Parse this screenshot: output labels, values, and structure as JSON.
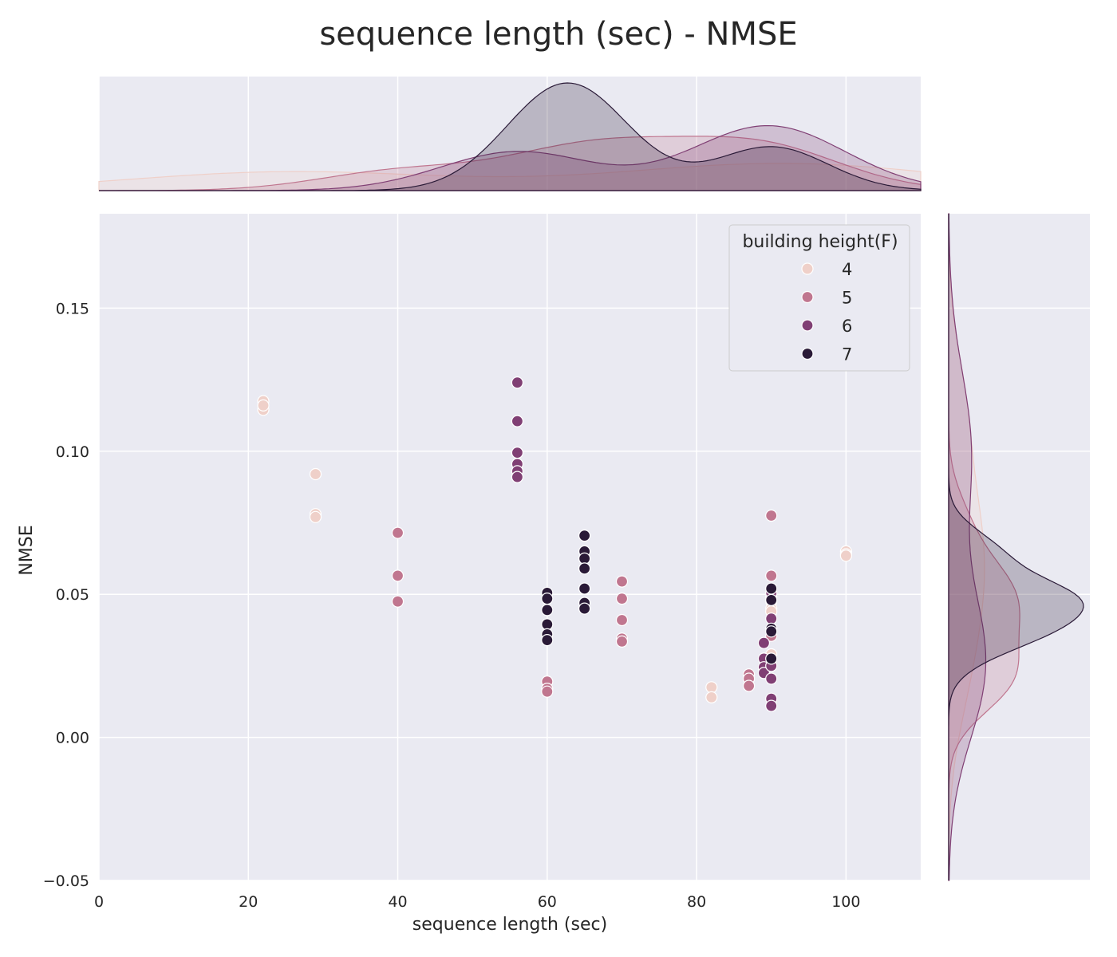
{
  "chart_data": {
    "type": "scatter",
    "title": "sequence length (sec) - NMSE",
    "xlabel": "sequence length (sec)",
    "ylabel": "NMSE",
    "xlim": [
      0,
      110
    ],
    "ylim": [
      -0.05,
      0.183
    ],
    "x_ticks": [
      0,
      20,
      40,
      60,
      80,
      100
    ],
    "y_ticks": [
      -0.05,
      0.0,
      0.05,
      0.1,
      0.15
    ],
    "x_tick_labels": [
      "0",
      "20",
      "40",
      "60",
      "80",
      "100"
    ],
    "y_tick_labels": [
      "−0.05",
      "0.00",
      "0.05",
      "0.10",
      "0.15"
    ],
    "grid": true,
    "marginal": "kde",
    "legend": {
      "title": "building height(F)",
      "placement": "top-right",
      "entries": [
        "4",
        "5",
        "6",
        "7"
      ]
    },
    "colors": {
      "4": "#efd0c9",
      "5": "#c0768f",
      "6": "#803f74",
      "7": "#2a1a37",
      "background": "#eaeaf2",
      "grid": "#ffffff"
    },
    "series": [
      {
        "name": "4",
        "points": [
          [
            22,
            0.1175
          ],
          [
            22,
            0.1145
          ],
          [
            22,
            0.116
          ],
          [
            29,
            0.092
          ],
          [
            29,
            0.078
          ],
          [
            29,
            0.077
          ],
          [
            82,
            0.0175
          ],
          [
            82,
            0.014
          ],
          [
            90,
            0.0475
          ],
          [
            90,
            0.045
          ],
          [
            90,
            0.044
          ],
          [
            90,
            0.029
          ],
          [
            100,
            0.065
          ],
          [
            100,
            0.064
          ],
          [
            100,
            0.0635
          ]
        ]
      },
      {
        "name": "5",
        "points": [
          [
            40,
            0.0715
          ],
          [
            40,
            0.0565
          ],
          [
            40,
            0.0475
          ],
          [
            60,
            0.0195
          ],
          [
            60,
            0.017
          ],
          [
            60,
            0.016
          ],
          [
            70,
            0.0545
          ],
          [
            70,
            0.0485
          ],
          [
            70,
            0.041
          ],
          [
            70,
            0.0345
          ],
          [
            70,
            0.0335
          ],
          [
            87,
            0.022
          ],
          [
            87,
            0.0205
          ],
          [
            87,
            0.018
          ],
          [
            90,
            0.0775
          ],
          [
            90,
            0.0565
          ],
          [
            90,
            0.049
          ],
          [
            90,
            0.0355
          ]
        ]
      },
      {
        "name": "6",
        "points": [
          [
            56,
            0.124
          ],
          [
            56,
            0.1105
          ],
          [
            56,
            0.0995
          ],
          [
            56,
            0.0955
          ],
          [
            56,
            0.093
          ],
          [
            56,
            0.091
          ],
          [
            89,
            0.033
          ],
          [
            89,
            0.0275
          ],
          [
            89,
            0.0245
          ],
          [
            89,
            0.0225
          ],
          [
            90,
            0.0505
          ],
          [
            90,
            0.0415
          ],
          [
            90,
            0.025
          ],
          [
            90,
            0.0205
          ],
          [
            90,
            0.0135
          ],
          [
            90,
            0.011
          ]
        ]
      },
      {
        "name": "7",
        "points": [
          [
            60,
            0.0505
          ],
          [
            60,
            0.0485
          ],
          [
            60,
            0.0445
          ],
          [
            60,
            0.0395
          ],
          [
            60,
            0.036
          ],
          [
            60,
            0.034
          ],
          [
            65,
            0.0705
          ],
          [
            65,
            0.065
          ],
          [
            65,
            0.0625
          ],
          [
            65,
            0.059
          ],
          [
            65,
            0.052
          ],
          [
            65,
            0.047
          ],
          [
            65,
            0.045
          ],
          [
            90,
            0.052
          ],
          [
            90,
            0.048
          ],
          [
            90,
            0.038
          ],
          [
            90,
            0.037
          ],
          [
            90,
            0.0275
          ]
        ]
      }
    ]
  }
}
